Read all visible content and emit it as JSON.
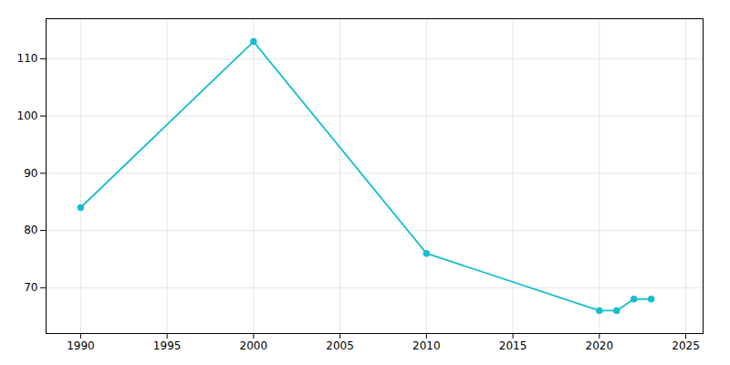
{
  "chart_data": {
    "type": "line",
    "x": [
      1990,
      2000,
      2010,
      2020,
      2021,
      2022,
      2023
    ],
    "values": [
      84,
      113,
      76,
      66,
      66,
      68,
      68
    ],
    "color": "#17BECF",
    "marker": "circle",
    "xlim": [
      1988,
      2026
    ],
    "ylim": [
      62,
      117
    ],
    "xticks": [
      1990,
      1995,
      2000,
      2005,
      2010,
      2015,
      2020,
      2025
    ],
    "yticks": [
      70,
      80,
      90,
      100,
      110
    ],
    "grid": true
  }
}
